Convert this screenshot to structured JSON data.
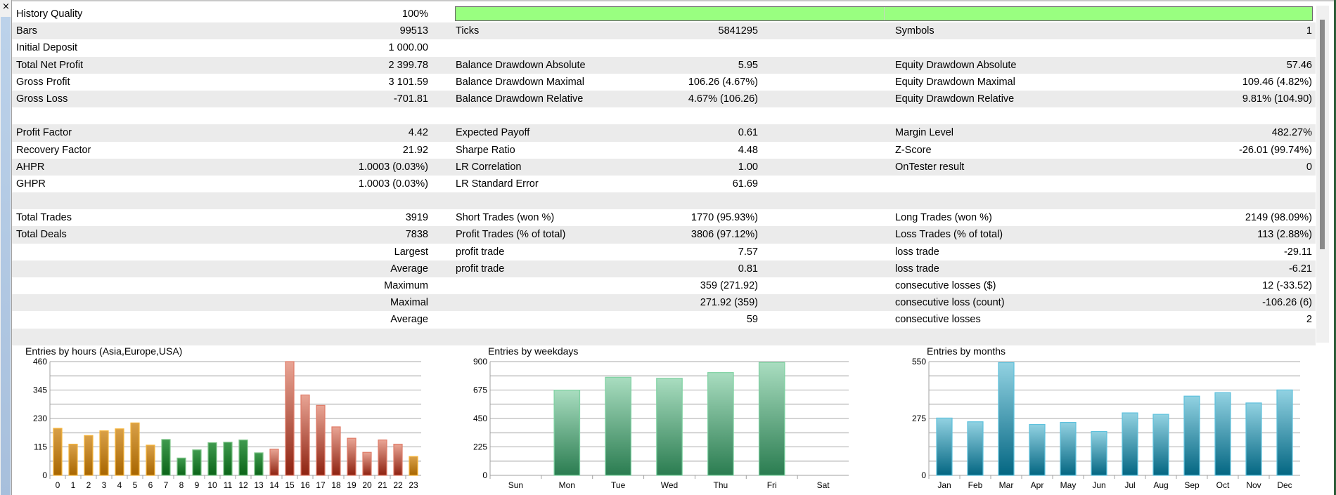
{
  "window": {
    "close_label": "×"
  },
  "history_quality": {
    "label": "History Quality",
    "value": "100%",
    "percent": 100,
    "bar_color": "#99ff80"
  },
  "rows": [
    {
      "l1": "Bars",
      "v1": "99513",
      "l2": "Ticks",
      "v2": "5841295",
      "l3": "Symbols",
      "v3": "1"
    },
    {
      "l1": "Initial Deposit",
      "v1": "1 000.00",
      "l2": "",
      "v2": "",
      "l3": "",
      "v3": ""
    },
    {
      "l1": "Total Net Profit",
      "v1": "2 399.78",
      "l2": "Balance Drawdown Absolute",
      "v2": "5.95",
      "l3": "Equity Drawdown Absolute",
      "v3": "57.46"
    },
    {
      "l1": "Gross Profit",
      "v1": "3 101.59",
      "l2": "Balance Drawdown Maximal",
      "v2": "106.26 (4.67%)",
      "l3": "Equity Drawdown Maximal",
      "v3": "109.46 (4.82%)"
    },
    {
      "l1": "Gross Loss",
      "v1": "-701.81",
      "l2": "Balance Drawdown Relative",
      "v2": "4.67% (106.26)",
      "l3": "Equity Drawdown Relative",
      "v3": "9.81% (104.90)"
    },
    {
      "l1": "",
      "v1": "",
      "l2": "",
      "v2": "",
      "l3": "",
      "v3": ""
    },
    {
      "l1": "Profit Factor",
      "v1": "4.42",
      "l2": "Expected Payoff",
      "v2": "0.61",
      "l3": "Margin Level",
      "v3": "482.27%"
    },
    {
      "l1": "Recovery Factor",
      "v1": "21.92",
      "l2": "Sharpe Ratio",
      "v2": "4.48",
      "l3": "Z-Score",
      "v3": "-26.01 (99.74%)"
    },
    {
      "l1": "AHPR",
      "v1": "1.0003 (0.03%)",
      "l2": "LR Correlation",
      "v2": "1.00",
      "l3": "OnTester result",
      "v3": "0"
    },
    {
      "l1": "GHPR",
      "v1": "1.0003 (0.03%)",
      "l2": "LR Standard Error",
      "v2": "61.69",
      "l3": "",
      "v3": ""
    },
    {
      "l1": "",
      "v1": "",
      "l2": "",
      "v2": "",
      "l3": "",
      "v3": ""
    },
    {
      "l1": "Total Trades",
      "v1": "3919",
      "l2": "Short Trades (won %)",
      "v2": "1770 (95.93%)",
      "l3": "Long Trades (won %)",
      "v3": "2149 (98.09%)"
    },
    {
      "l1": "Total Deals",
      "v1": "7838",
      "l2": "Profit Trades (% of total)",
      "v2": "3806 (97.12%)",
      "l3": "Loss Trades (% of total)",
      "v3": "113 (2.88%)"
    },
    {
      "l1": "",
      "v1": "Largest",
      "l2": "profit trade",
      "v2": "7.57",
      "l3": "loss trade",
      "v3": "-29.11"
    },
    {
      "l1": "",
      "v1": "Average",
      "l2": "profit trade",
      "v2": "0.81",
      "l3": "loss trade",
      "v3": "-6.21"
    },
    {
      "l1": "",
      "v1": "Maximum",
      "l2": "",
      "v2": "359 (271.92)",
      "l3": "consecutive losses ($)",
      "v3": "12 (-33.52)"
    },
    {
      "l1": "",
      "v1": "Maximal",
      "l2": "",
      "v2": "271.92 (359)",
      "l3": "consecutive loss (count)",
      "v3": "-106.26 (6)"
    },
    {
      "l1": "",
      "v1": "Average",
      "l2": "",
      "v2": "59",
      "l3": "consecutive losses",
      "v3": "2"
    },
    {
      "l1": "",
      "v1": "",
      "l2": "",
      "v2": "",
      "l3": "",
      "v3": ""
    }
  ],
  "chart_data": [
    {
      "type": "bar",
      "title": "Entries by hours (Asia,Europe,USA)",
      "categories": [
        "0",
        "1",
        "2",
        "3",
        "4",
        "5",
        "6",
        "7",
        "8",
        "9",
        "10",
        "11",
        "12",
        "13",
        "14",
        "15",
        "16",
        "17",
        "18",
        "19",
        "20",
        "21",
        "22",
        "23"
      ],
      "values": [
        190,
        126,
        161,
        180,
        188,
        212,
        122,
        145,
        70,
        103,
        132,
        134,
        143,
        91,
        106,
        460,
        325,
        283,
        196,
        150,
        93,
        143,
        126,
        76
      ],
      "groups": [
        "asia",
        "asia",
        "asia",
        "asia",
        "asia",
        "asia",
        "asia",
        "europe",
        "europe",
        "europe",
        "europe",
        "europe",
        "europe",
        "europe",
        "usa",
        "usa",
        "usa",
        "usa",
        "usa",
        "usa",
        "usa",
        "usa",
        "usa",
        "asia"
      ],
      "yticks": [
        0,
        115,
        230,
        345,
        460
      ],
      "ylim": [
        0,
        460
      ],
      "colors": {
        "asia": [
          "#d9a048",
          "#a86600",
          "#f5b43a"
        ],
        "europe": [
          "#3f9a4e",
          "#0b6418",
          "#7cc487"
        ],
        "usa": [
          "#e9a595",
          "#8e2210",
          "#e07b68"
        ]
      }
    },
    {
      "type": "bar",
      "title": "Entries by weekdays",
      "categories": [
        "Sun",
        "Mon",
        "Tue",
        "Wed",
        "Thu",
        "Fri",
        "Sat"
      ],
      "values": [
        0,
        674,
        776,
        768,
        813,
        893,
        0
      ],
      "yticks": [
        0,
        225,
        450,
        675,
        900
      ],
      "ylim": [
        0,
        900
      ],
      "colors": {
        "default": [
          "#a9ddc0",
          "#2a7c50",
          "#7ed2a2"
        ]
      }
    },
    {
      "type": "bar",
      "title": "Entries by months",
      "categories": [
        "Jan",
        "Feb",
        "Mar",
        "Apr",
        "May",
        "Jun",
        "Jul",
        "Aug",
        "Sep",
        "Oct",
        "Nov",
        "Dec"
      ],
      "values": [
        277,
        259,
        545,
        246,
        256,
        212,
        302,
        295,
        383,
        400,
        350,
        413
      ],
      "yticks": [
        0,
        275,
        550
      ],
      "ylim": [
        0,
        550
      ],
      "colors": {
        "default": [
          "#92d2e2",
          "#036682",
          "#5ec1dd"
        ]
      }
    }
  ]
}
